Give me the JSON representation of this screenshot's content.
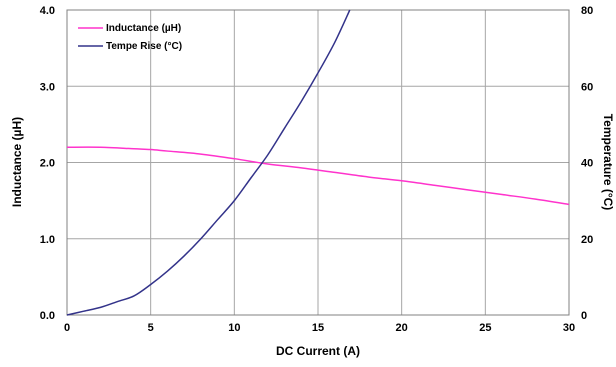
{
  "chart_data": {
    "type": "line",
    "title": "",
    "xlabel": "DC Current (A)",
    "ylabel": "Inductance (µH)",
    "y2label": "Temperature (°C)",
    "xlim": [
      0,
      30
    ],
    "ylim": [
      0,
      4
    ],
    "y2lim": [
      0,
      80
    ],
    "grid": true,
    "legend_position": "top-left",
    "x_ticks": [
      "0",
      "5",
      "10",
      "15",
      "20",
      "25",
      "30"
    ],
    "y_ticks": [
      "0.0",
      "1.0",
      "2.0",
      "3.0",
      "4.0"
    ],
    "y2_ticks": [
      "0",
      "20",
      "40",
      "60",
      "80"
    ],
    "series": [
      {
        "name": "Inductance (µH)",
        "axis": "left",
        "color": "#ff33cc",
        "x": [
          0,
          2,
          4,
          5,
          6,
          8,
          10,
          12,
          14,
          16,
          18,
          20,
          22,
          24,
          26,
          28,
          30
        ],
        "y": [
          2.2,
          2.2,
          2.18,
          2.17,
          2.15,
          2.11,
          2.05,
          1.98,
          1.93,
          1.87,
          1.81,
          1.76,
          1.7,
          1.64,
          1.58,
          1.52,
          1.45
        ]
      },
      {
        "name": "Tempe Rise (°C)",
        "axis": "right",
        "color": "#33338a",
        "x": [
          0,
          1,
          2,
          3,
          4,
          5,
          6,
          7,
          8,
          9,
          10,
          11,
          12,
          13,
          14,
          15,
          16,
          16.9
        ],
        "y": [
          0,
          1,
          2,
          3.5,
          5,
          8,
          11.5,
          15.5,
          20,
          25,
          30,
          36,
          42,
          49,
          56,
          63.5,
          71.5,
          80
        ]
      }
    ]
  }
}
